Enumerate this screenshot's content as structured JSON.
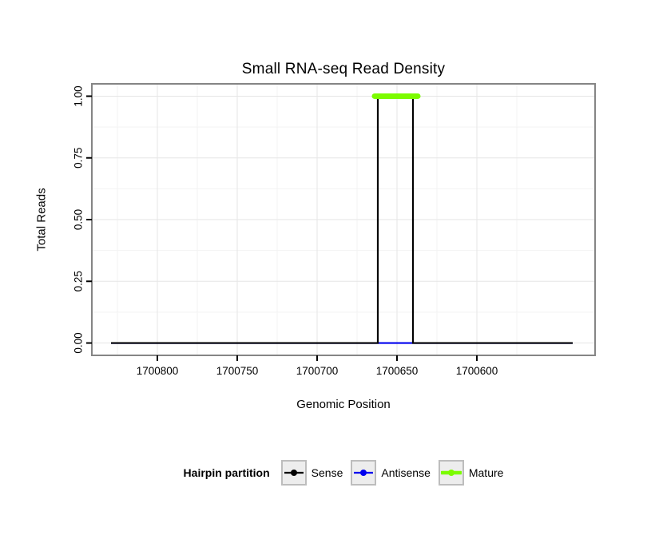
{
  "chart_data": {
    "type": "line",
    "title": "Small RNA-seq Read Density",
    "xlabel": "Genomic Position",
    "ylabel": "Total Reads",
    "legend_title": "Hairpin partition",
    "legend_position": "bottom",
    "x_reversed": true,
    "xlim": [
      1700841,
      1700526
    ],
    "ylim": [
      -0.05,
      1.05
    ],
    "x_ticks": [
      {
        "value": 1700800,
        "label": "1700800"
      },
      {
        "value": 1700750,
        "label": "1700750"
      },
      {
        "value": 1700700,
        "label": "1700700"
      },
      {
        "value": 1700650,
        "label": "1700650"
      },
      {
        "value": 1700600,
        "label": "1700600"
      }
    ],
    "y_ticks": [
      {
        "value": 0,
        "label": "0.00"
      },
      {
        "value": 0.25,
        "label": "0.25"
      },
      {
        "value": 0.5,
        "label": "0.50"
      },
      {
        "value": 0.75,
        "label": "0.75"
      },
      {
        "value": 1,
        "label": "1.00"
      }
    ],
    "grid": {
      "major": true,
      "minor": true
    },
    "series": [
      {
        "name": "Sense",
        "color": "#000000",
        "linewidth": 2.2,
        "z": 2,
        "points": [
          [
            1700829,
            0
          ],
          [
            1700662,
            0
          ],
          [
            1700662,
            1
          ],
          [
            1700640,
            1
          ],
          [
            1700640,
            0
          ],
          [
            1700540,
            0
          ]
        ]
      },
      {
        "name": "Antisense",
        "color": "#0000EE",
        "linewidth": 2.2,
        "z": 1,
        "points": [
          [
            1700829,
            0
          ],
          [
            1700540,
            0
          ]
        ]
      },
      {
        "name": "Mature",
        "color": "#7CFC00",
        "linewidth": 7,
        "linecap": "round",
        "z": 3,
        "points": [
          [
            1700664,
            1
          ],
          [
            1700637,
            1
          ]
        ]
      }
    ],
    "colors": {
      "panel_background": "#FFFFFF",
      "panel_border": "#858585",
      "grid_major": "#E6E6E6",
      "grid_minor": "#F3F3F3",
      "tick_mark": "#000000",
      "text": "#000000",
      "legend_key_background": "#EDEDED",
      "legend_key_border": "#BDBDBD"
    }
  }
}
